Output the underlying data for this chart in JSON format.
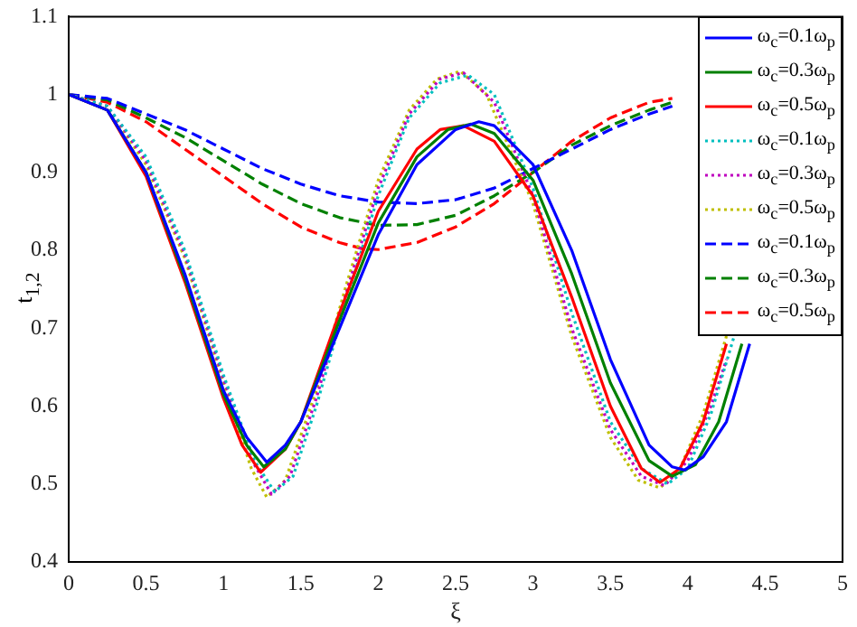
{
  "chart_data": {
    "type": "line",
    "xlabel": "ξ",
    "ylabel": "t$_{1,2}$",
    "xlim": [
      0,
      5
    ],
    "xticks": [
      0,
      0.5,
      1,
      1.5,
      2,
      2.5,
      3,
      3.5,
      4,
      4.5,
      5
    ],
    "ylim": [
      0.4,
      1.1
    ],
    "yticks": [
      0.4,
      0.5,
      0.6,
      0.7,
      0.8,
      0.9,
      1,
      1.1
    ],
    "grid": false,
    "legend": "top right",
    "series": [
      {
        "name": "ω$_{c}$=0.1ω$_{p}$",
        "color": "#0000ff",
        "line_style": "solid",
        "x": [
          0,
          0.25,
          0.5,
          0.75,
          1,
          1.15,
          1.28,
          1.4,
          1.5,
          1.75,
          2,
          2.25,
          2.5,
          2.65,
          2.75,
          3,
          3.25,
          3.5,
          3.75,
          3.9,
          3.98,
          4.1,
          4.25,
          4.4
        ],
        "values": [
          1,
          0.98,
          0.9,
          0.77,
          0.62,
          0.56,
          0.528,
          0.55,
          0.58,
          0.7,
          0.82,
          0.91,
          0.955,
          0.965,
          0.96,
          0.91,
          0.8,
          0.66,
          0.55,
          0.522,
          0.518,
          0.535,
          0.58,
          0.68
        ]
      },
      {
        "name": "ω$_{c}$=0.3ω$_{p}$",
        "color": "#008000",
        "line_style": "solid",
        "x": [
          0,
          0.25,
          0.5,
          0.75,
          1,
          1.15,
          1.26,
          1.4,
          1.5,
          1.75,
          2,
          2.25,
          2.45,
          2.6,
          2.75,
          3,
          3.25,
          3.5,
          3.75,
          3.9,
          4.05,
          4.2,
          4.35
        ],
        "values": [
          1,
          0.98,
          0.9,
          0.765,
          0.615,
          0.55,
          0.522,
          0.545,
          0.58,
          0.71,
          0.835,
          0.92,
          0.955,
          0.962,
          0.95,
          0.89,
          0.77,
          0.63,
          0.53,
          0.51,
          0.525,
          0.58,
          0.68
        ]
      },
      {
        "name": "ω$_{c}$=0.5ω$_{p}$",
        "color": "#ff0000",
        "line_style": "solid",
        "x": [
          0,
          0.25,
          0.5,
          0.75,
          1,
          1.12,
          1.24,
          1.4,
          1.5,
          1.75,
          2,
          2.25,
          2.4,
          2.55,
          2.75,
          3,
          3.25,
          3.5,
          3.7,
          3.82,
          3.95,
          4.1,
          4.25
        ],
        "values": [
          1,
          0.98,
          0.895,
          0.76,
          0.61,
          0.55,
          0.515,
          0.545,
          0.58,
          0.72,
          0.85,
          0.93,
          0.955,
          0.96,
          0.94,
          0.87,
          0.74,
          0.6,
          0.52,
          0.502,
          0.52,
          0.58,
          0.68
        ]
      },
      {
        "name": "ω$_{c}$=0.1ω$_{p}$",
        "color": "#00bfbf",
        "line_style": "dotted",
        "x": [
          0,
          0.25,
          0.5,
          0.75,
          1,
          1.2,
          1.33,
          1.45,
          1.6,
          1.8,
          2,
          2.2,
          2.4,
          2.58,
          2.75,
          3,
          3.25,
          3.5,
          3.7,
          3.87,
          4,
          4.15,
          4.3
        ],
        "values": [
          1,
          0.985,
          0.92,
          0.8,
          0.64,
          0.53,
          0.49,
          0.51,
          0.6,
          0.74,
          0.87,
          0.97,
          1.015,
          1.025,
          1.0,
          0.88,
          0.72,
          0.58,
          0.52,
          0.5,
          0.52,
          0.59,
          0.69
        ]
      },
      {
        "name": "ω$_{c}$=0.3ω$_{p}$",
        "color": "#bf00bf",
        "line_style": "dotted",
        "x": [
          0,
          0.25,
          0.5,
          0.75,
          1,
          1.2,
          1.31,
          1.43,
          1.6,
          1.8,
          2,
          2.2,
          2.4,
          2.55,
          2.75,
          3,
          3.25,
          3.5,
          3.7,
          3.85,
          4,
          4.15,
          4.25
        ],
        "values": [
          1,
          0.985,
          0.915,
          0.795,
          0.635,
          0.525,
          0.487,
          0.51,
          0.61,
          0.75,
          0.88,
          0.975,
          1.02,
          1.028,
          0.99,
          0.87,
          0.7,
          0.57,
          0.51,
          0.498,
          0.53,
          0.6,
          0.66
        ]
      },
      {
        "name": "ω$_{c}$=0.5ω$_{p}$",
        "color": "#bfbf00",
        "line_style": "dotted",
        "x": [
          0,
          0.25,
          0.5,
          0.75,
          1,
          1.18,
          1.28,
          1.4,
          1.6,
          1.8,
          2,
          2.2,
          2.38,
          2.53,
          2.7,
          3,
          3.25,
          3.5,
          3.68,
          3.82,
          3.95,
          4.1,
          4.25
        ],
        "values": [
          1,
          0.985,
          0.91,
          0.79,
          0.63,
          0.52,
          0.483,
          0.505,
          0.62,
          0.76,
          0.89,
          0.98,
          1.02,
          1.03,
          1.0,
          0.86,
          0.69,
          0.56,
          0.505,
          0.495,
          0.52,
          0.59,
          0.69
        ]
      },
      {
        "name": "ω$_{c}$=0.1ω$_{p}$",
        "color": "#0000ff",
        "line_style": "dashed",
        "x": [
          0,
          0.25,
          0.5,
          0.75,
          1,
          1.25,
          1.5,
          1.75,
          2,
          2.25,
          2.5,
          2.75,
          3,
          3.25,
          3.5,
          3.75,
          3.9
        ],
        "values": [
          1,
          0.995,
          0.975,
          0.955,
          0.93,
          0.905,
          0.885,
          0.87,
          0.862,
          0.86,
          0.865,
          0.88,
          0.905,
          0.93,
          0.955,
          0.975,
          0.985
        ]
      },
      {
        "name": "ω$_{c}$=0.3ω$_{p}$",
        "color": "#008000",
        "line_style": "dashed",
        "x": [
          0,
          0.25,
          0.5,
          0.75,
          1,
          1.25,
          1.5,
          1.75,
          2,
          2.25,
          2.5,
          2.75,
          3,
          3.25,
          3.5,
          3.75,
          3.9
        ],
        "values": [
          1,
          0.993,
          0.97,
          0.945,
          0.915,
          0.885,
          0.86,
          0.842,
          0.832,
          0.833,
          0.845,
          0.87,
          0.9,
          0.935,
          0.96,
          0.98,
          0.99
        ]
      },
      {
        "name": "ω$_{c}$=0.5ω$_{p}$",
        "color": "#ff0000",
        "line_style": "dashed",
        "x": [
          0,
          0.25,
          0.5,
          0.75,
          1,
          1.25,
          1.5,
          1.75,
          1.9,
          2,
          2.25,
          2.5,
          2.75,
          3,
          3.25,
          3.5,
          3.75,
          3.9
        ],
        "values": [
          1,
          0.99,
          0.965,
          0.93,
          0.895,
          0.86,
          0.83,
          0.81,
          0.802,
          0.801,
          0.81,
          0.83,
          0.86,
          0.9,
          0.94,
          0.97,
          0.99,
          0.995
        ]
      }
    ]
  }
}
